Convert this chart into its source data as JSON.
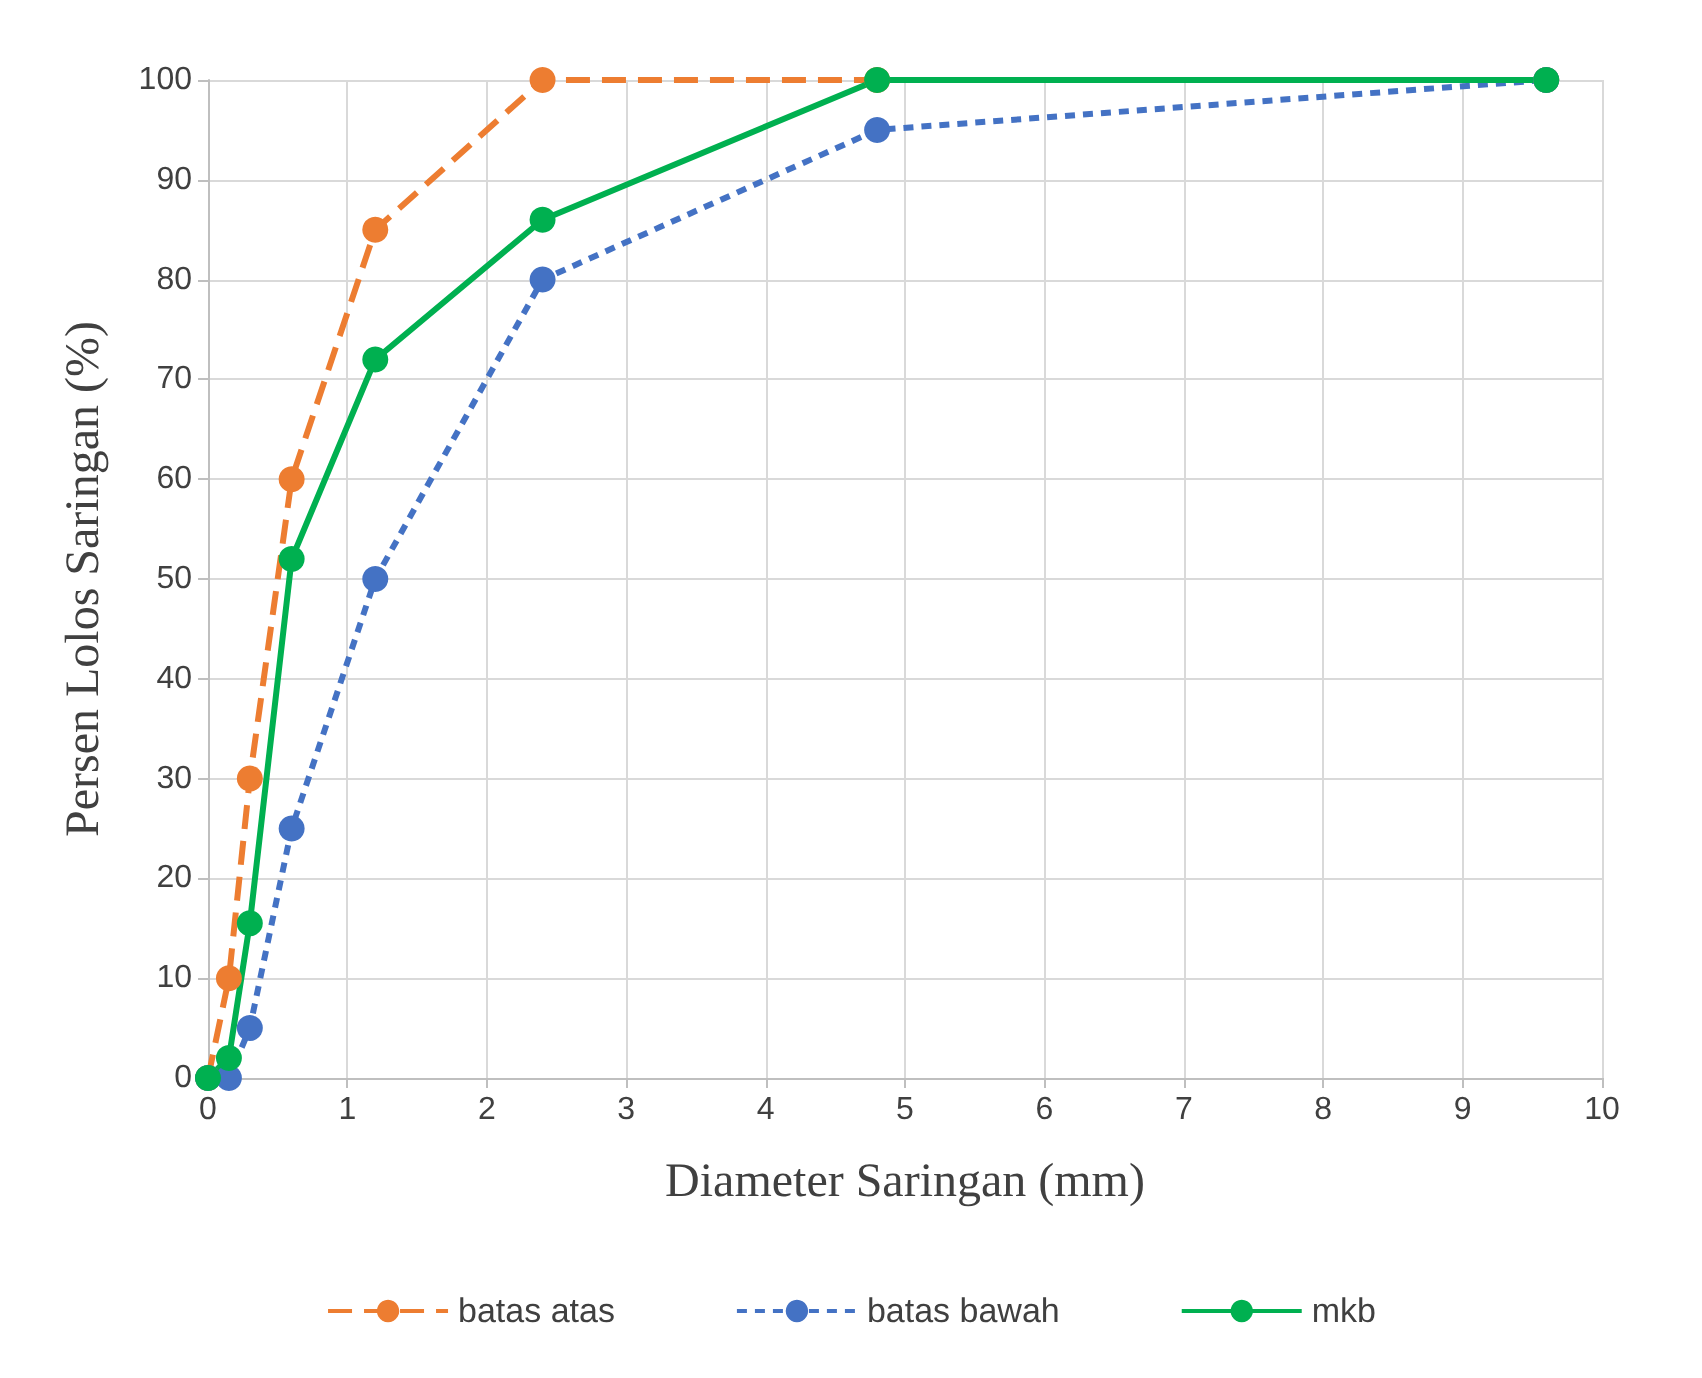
{
  "chart_data": {
    "type": "line",
    "xlabel": "Diameter Saringan (mm)",
    "ylabel": "Persen Lolos Saringan (%)",
    "xlim": [
      0,
      10
    ],
    "xticks": [
      0,
      1,
      2,
      3,
      4,
      5,
      6,
      7,
      8,
      9,
      10
    ],
    "ylim": [
      0,
      100
    ],
    "yticks": [
      0,
      10,
      20,
      30,
      40,
      50,
      60,
      70,
      80,
      90,
      100
    ],
    "grid": true,
    "legend": "bottom",
    "marker": "circle",
    "series": [
      {
        "name": "batas atas",
        "color": "#ed7d31",
        "line_style": "dashed",
        "x": [
          0,
          0.15,
          0.3,
          0.6,
          1.2,
          2.4,
          4.8,
          9.6
        ],
        "values": [
          0,
          10,
          30,
          60,
          85,
          100,
          100,
          100
        ]
      },
      {
        "name": "batas bawah",
        "color": "#4472c4",
        "line_style": "dotted",
        "x": [
          0,
          0.15,
          0.3,
          0.6,
          1.2,
          2.4,
          4.8,
          9.6
        ],
        "values": [
          0,
          0,
          5,
          25,
          50,
          80,
          95,
          100
        ]
      },
      {
        "name": "mkb",
        "color": "#00b050",
        "line_style": "solid",
        "x": [
          0,
          0.15,
          0.3,
          0.6,
          1.2,
          2.4,
          4.8,
          9.6
        ],
        "values": [
          0,
          2,
          15.5,
          52,
          72,
          86,
          100,
          100
        ]
      }
    ]
  }
}
